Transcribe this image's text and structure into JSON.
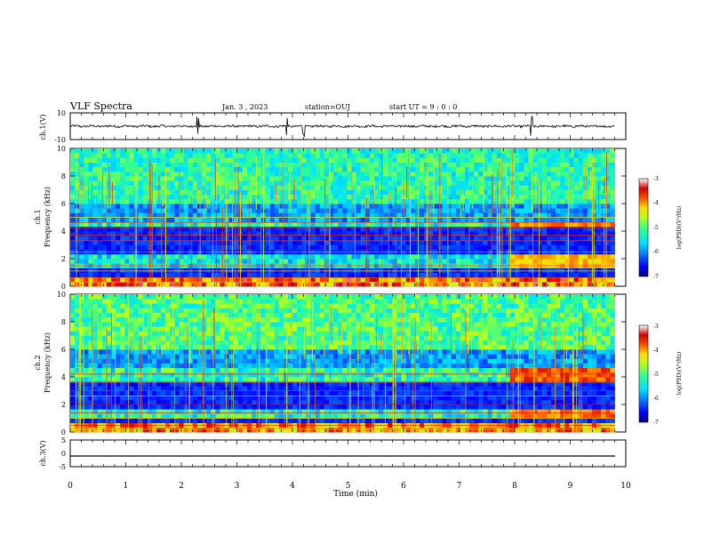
{
  "header": {
    "title": "VLF Spectra",
    "date": "Jan. 3 , 2023",
    "station": "station=OUJ",
    "start_ut": "start UT = 9 : 0 : 0"
  },
  "xaxis": {
    "label": "Time (min)",
    "range": [
      0,
      10
    ],
    "ticks": [
      "0",
      "1",
      "2",
      "3",
      "4",
      "5",
      "6",
      "7",
      "8",
      "9",
      "10"
    ]
  },
  "panels": {
    "ch1_waveform": {
      "ylabel": "ch.1(V)",
      "ticks": [
        "10",
        "-10"
      ],
      "ylim": [
        -10,
        10
      ]
    },
    "ch1_spectrogram": {
      "ylabel_channel": "ch.1",
      "ylabel_quantity": "Frequency (kHz)",
      "ticks": [
        "0",
        "2",
        "4",
        "6",
        "8",
        "10"
      ],
      "ylim": [
        0,
        10
      ]
    },
    "ch2_spectrogram": {
      "ylabel_channel": "ch.2",
      "ylabel_quantity": "Frequency (kHz)",
      "ticks": [
        "0",
        "2",
        "4",
        "6",
        "8",
        "10"
      ],
      "ylim": [
        0,
        10
      ]
    },
    "ch3_waveform": {
      "ylabel": "ch.3(V)",
      "ticks": [
        "5",
        "0",
        "-5"
      ],
      "ylim": [
        -5,
        5
      ]
    }
  },
  "colorbars": [
    {
      "label": "log(PSD)(V²/Hz)",
      "ticks": [
        "-3",
        "-4",
        "-5",
        "-6",
        "-7"
      ],
      "range": [
        -7,
        -3
      ]
    },
    {
      "label": "log(PSD)(V²/Hz)",
      "ticks": [
        "-3",
        "-4",
        "-5",
        "-6",
        "-7"
      ],
      "range": [
        -7,
        -3
      ]
    }
  ],
  "colors": {
    "colormap": [
      "#00007a",
      "#0000ff",
      "#0a70ff",
      "#00e0ff",
      "#30ff90",
      "#b0ff20",
      "#ffe000",
      "#ff5000",
      "#d00000",
      "#ffffff"
    ]
  },
  "chart_data": [
    {
      "type": "line",
      "title": "",
      "xlabel": "Time (min)",
      "ylabel": "ch.1(V)",
      "xlim": [
        0,
        10
      ],
      "ylim": [
        -10,
        10
      ],
      "data_end_min": 9.8,
      "series": [
        {
          "description": "noisy waveform centered near 0 V, amplitude about ±1 V with spikes near 2.3, 3.9, 4.2 and 8.3 min"
        }
      ]
    },
    {
      "type": "heatmap",
      "title": "",
      "xlabel": "Time (min)",
      "ylabel": "Frequency (kHz)",
      "xlim": [
        0,
        10
      ],
      "ylim": [
        0,
        10
      ],
      "clim": [
        -7,
        -3
      ],
      "data_end_min": 9.8,
      "features": [
        {
          "freq_khz": [
            6.0,
            10.0
          ],
          "level": -5.2,
          "note": "broadband sferic band with many vertical spikes"
        },
        {
          "freq_khz": [
            4.2,
            4.6
          ],
          "level": -4.6,
          "note": "band, intensifies after 7.9 min"
        },
        {
          "freq_khz": [
            1.5,
            2.2
          ],
          "level": -4.8,
          "note": "band, intensifies after 7.9 min"
        },
        {
          "freq_khz": [
            0.0,
            0.8
          ],
          "level": -3.8,
          "note": "strong low-frequency lines"
        }
      ]
    },
    {
      "type": "heatmap",
      "title": "",
      "xlabel": "Time (min)",
      "ylabel": "Frequency (kHz)",
      "xlim": [
        0,
        10
      ],
      "ylim": [
        0,
        10
      ],
      "clim": [
        -7,
        -3
      ],
      "data_end_min": 9.8,
      "features": [
        {
          "freq_khz": [
            6.0,
            10.0
          ],
          "level": -5.0,
          "note": "broadband sferic band with many vertical spikes"
        },
        {
          "freq_khz": [
            3.8,
            4.6
          ],
          "level": -4.5,
          "note": "band, intensifies after 7.9 min"
        },
        {
          "freq_khz": [
            1.0,
            1.8
          ],
          "level": -4.6,
          "note": "band, intensifies after 7.9 min"
        },
        {
          "freq_khz": [
            0.0,
            0.6
          ],
          "level": -4.0,
          "note": "low-frequency lines"
        }
      ]
    },
    {
      "type": "line",
      "title": "",
      "xlabel": "Time (min)",
      "ylabel": "ch.3(V)",
      "xlim": [
        0,
        10
      ],
      "ylim": [
        -5,
        5
      ],
      "data_end_min": 9.8,
      "series": [
        {
          "values_constant": -1.5
        }
      ]
    }
  ]
}
